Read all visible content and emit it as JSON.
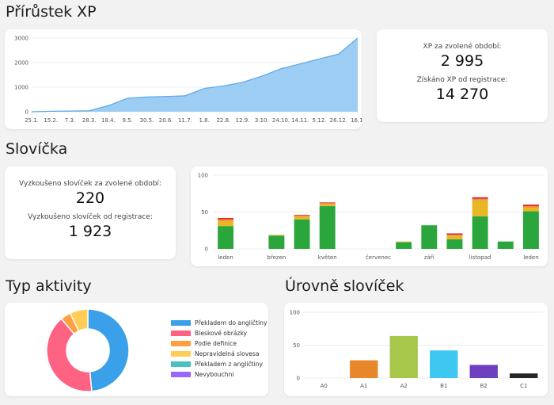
{
  "sections": {
    "xp": "Přírůstek XP",
    "words": "Slovíčka",
    "activity": "Typ aktivity",
    "levels": "Úrovně slovíček"
  },
  "xp_stats": {
    "period_label": "XP za zvolené období:",
    "period_value": "2 995",
    "total_label": "Získáno XP od registrace:",
    "total_value": "14 270"
  },
  "word_stats": {
    "period_label": "Vyzkoušeno slovíček za zvolené období:",
    "period_value": "220",
    "total_label": "Vyzkoušeno slovíček od registrace:",
    "total_value": "1 923"
  },
  "chart_data": [
    {
      "type": "area",
      "color": "#9dcdf3",
      "line_color": "#5aa8e8",
      "y_ticks": [
        "0",
        "1000",
        "2000",
        "3000"
      ],
      "ylim": [
        0,
        3000
      ],
      "x_tick_labels": [
        "25.1.",
        "15.2.",
        "7.3.",
        "28.3.",
        "18.4.",
        "9.5.",
        "30.5.",
        "20.6.",
        "11.7.",
        "1.8.",
        "22.8.",
        "12.9.",
        "3.10.",
        "24.10.",
        "14.11.",
        "5.12.",
        "26.12.",
        "16.1."
      ],
      "x": [
        0,
        1,
        2,
        3,
        4,
        5,
        6,
        7,
        8,
        9,
        10,
        11,
        12,
        13,
        14,
        15,
        16,
        17
      ],
      "values": [
        0,
        20,
        30,
        40,
        250,
        550,
        600,
        620,
        650,
        950,
        1050,
        1200,
        1450,
        1750,
        1950,
        2150,
        2350,
        3000
      ]
    },
    {
      "type": "bar",
      "stacked": true,
      "y_ticks": [
        "0",
        "50",
        "100"
      ],
      "ylim": [
        0,
        100
      ],
      "categories": [
        "leden",
        "",
        "březen",
        "",
        "květen",
        "",
        "červenec",
        "",
        "září",
        "",
        "listopad",
        "",
        "leden"
      ],
      "series": [
        {
          "color": "#2aa63c",
          "values": [
            31,
            0,
            18,
            40,
            58,
            0,
            0,
            9,
            32,
            13,
            44,
            10,
            51
          ]
        },
        {
          "color": "#e9b626",
          "values": [
            7,
            0,
            1,
            4,
            3,
            0,
            0,
            1,
            0,
            5,
            22,
            0,
            5
          ]
        },
        {
          "color": "#f08a3a",
          "values": [
            2,
            0,
            0,
            1,
            1,
            0,
            0,
            0,
            0,
            1,
            2,
            0,
            2
          ]
        },
        {
          "color": "#dd2a2a",
          "values": [
            2,
            0,
            0,
            1,
            1,
            0,
            0,
            0,
            0,
            2,
            2,
            0,
            2
          ]
        }
      ]
    },
    {
      "type": "pie",
      "donut": true,
      "legend_position": "right",
      "slices": [
        {
          "name": "Překladem do angličtiny",
          "value": 48,
          "color": "#3aa0ea"
        },
        {
          "name": "Bleskové obrázky",
          "value": 40,
          "color": "#ff6384"
        },
        {
          "name": "Podle definice",
          "value": 4,
          "color": "#ff9f40"
        },
        {
          "name": "Nepravidelná slovesa",
          "value": 7,
          "color": "#ffcd56"
        },
        {
          "name": "Překladem z angličtiny",
          "value": 0,
          "color": "#4bc0c0"
        },
        {
          "name": "Nevybouchni",
          "value": 0,
          "color": "#9966ff"
        }
      ]
    },
    {
      "type": "bar",
      "y_ticks": [
        "0",
        "50",
        "100"
      ],
      "ylim": [
        0,
        100
      ],
      "categories": [
        "A0",
        "A1",
        "A2",
        "B1",
        "B2",
        "C1"
      ],
      "values": [
        0,
        27,
        64,
        42,
        20,
        7
      ],
      "colors": [
        "#cccccc",
        "#e8862a",
        "#a6c74a",
        "#3ec7f0",
        "#6e3fbf",
        "#262626"
      ]
    }
  ]
}
